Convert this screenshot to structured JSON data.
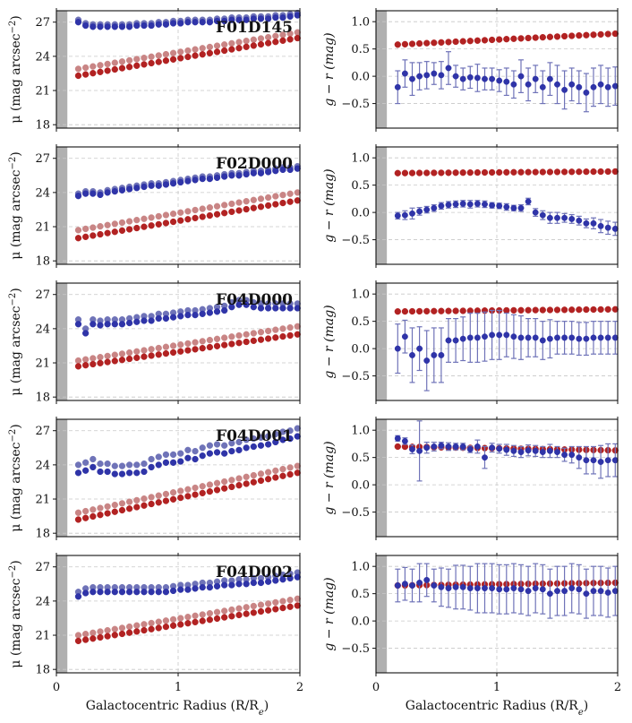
{
  "chart_data": {
    "type": "scatter",
    "colors": {
      "red_inner": "#b22222",
      "red_outer": "#c98585",
      "blue_inner": "#2f34a8",
      "blue_outer": "#6f73b8",
      "shade": "#b0b0b0",
      "grid": "#c8c8c8"
    },
    "xlabel": "Galactocentric Radius (R/R",
    "xlabel_sub": "e",
    "xlabel_end": ")",
    "x_ticks": [
      "0",
      "1",
      "2"
    ],
    "xlim": [
      0,
      2
    ],
    "left_ylabel": "μ (mag arcsec",
    "left_ylabel_sup": "−2",
    "left_ylabel_end": ")",
    "right_ylabel": "g − r (mag)",
    "left_ylim": [
      28,
      17.7
    ],
    "right_ylim": [
      -0.95,
      1.2
    ],
    "left_yticks": [
      "18",
      "21",
      "24",
      "27"
    ],
    "right_yticks": [
      "1.0",
      "0.5",
      "0.0",
      "−0.5"
    ],
    "shade_x": 0.09,
    "radii": [
      0.18,
      0.24,
      0.3,
      0.36,
      0.42,
      0.48,
      0.54,
      0.6,
      0.66,
      0.72,
      0.78,
      0.84,
      0.9,
      0.96,
      1.02,
      1.08,
      1.14,
      1.2,
      1.26,
      1.32,
      1.38,
      1.44,
      1.5,
      1.56,
      1.62,
      1.68,
      1.74,
      1.8,
      1.86,
      1.92,
      1.98
    ],
    "panels": [
      {
        "name": "F01D145",
        "red_start": 22.3,
        "red_end": 25.6,
        "red2_start": 22.9,
        "red2_end": 26.1,
        "blue": [
          27.0,
          26.7,
          26.6,
          26.6,
          26.6,
          26.6,
          26.6,
          26.6,
          26.7,
          26.7,
          26.7,
          26.8,
          26.8,
          26.9,
          26.9,
          27.0,
          27.0,
          27.0,
          27.0,
          27.1,
          27.1,
          27.2,
          27.2,
          27.2,
          27.3,
          27.3,
          27.3,
          27.4,
          27.4,
          27.5,
          27.6
        ],
        "blue2_offset": 0.2,
        "color_red_start": 0.58,
        "color_red_end": 0.78,
        "color_blue": [
          -0.2,
          0.05,
          -0.05,
          0.0,
          0.02,
          0.05,
          0.02,
          0.15,
          0.0,
          -0.05,
          -0.02,
          -0.03,
          -0.05,
          -0.05,
          -0.08,
          -0.1,
          -0.15,
          0.0,
          -0.15,
          -0.05,
          -0.2,
          -0.05,
          -0.15,
          -0.25,
          -0.15,
          -0.2,
          -0.3,
          -0.2,
          -0.15,
          -0.2,
          -0.18
        ],
        "color_err": [
          0.3,
          0.25,
          0.3,
          0.25,
          0.25,
          0.2,
          0.25,
          0.3,
          0.2,
          0.2,
          0.2,
          0.25,
          0.2,
          0.2,
          0.2,
          0.25,
          0.25,
          0.3,
          0.3,
          0.25,
          0.3,
          0.3,
          0.35,
          0.35,
          0.3,
          0.3,
          0.35,
          0.35,
          0.35,
          0.35,
          0.35
        ]
      },
      {
        "name": "F02D000",
        "red_start": 20.0,
        "red_end": 23.3,
        "red2_start": 20.7,
        "red2_end": 24.0,
        "blue": [
          23.7,
          23.9,
          23.9,
          23.8,
          24.0,
          24.1,
          24.2,
          24.3,
          24.4,
          24.5,
          24.6,
          24.6,
          24.7,
          24.8,
          24.9,
          25.0,
          25.1,
          25.2,
          25.2,
          25.3,
          25.4,
          25.5,
          25.5,
          25.6,
          25.7,
          25.7,
          25.8,
          25.9,
          26.0,
          26.0,
          26.1
        ],
        "blue2_offset": 0.2,
        "color_red_start": 0.72,
        "color_red_end": 0.75,
        "color_blue": [
          -0.06,
          -0.05,
          -0.02,
          0.02,
          0.05,
          0.08,
          0.12,
          0.14,
          0.15,
          0.16,
          0.15,
          0.16,
          0.15,
          0.13,
          0.12,
          0.1,
          0.08,
          0.08,
          0.2,
          0.0,
          -0.05,
          -0.1,
          -0.1,
          -0.1,
          -0.12,
          -0.15,
          -0.2,
          -0.2,
          -0.25,
          -0.28,
          -0.3
        ],
        "color_err": [
          0.06,
          0.08,
          0.1,
          0.07,
          0.06,
          0.06,
          0.06,
          0.06,
          0.06,
          0.06,
          0.07,
          0.06,
          0.06,
          0.05,
          0.05,
          0.06,
          0.05,
          0.06,
          0.06,
          0.07,
          0.08,
          0.1,
          0.1,
          0.08,
          0.08,
          0.08,
          0.08,
          0.1,
          0.12,
          0.12,
          0.12
        ]
      },
      {
        "name": "F04D000",
        "red_start": 20.7,
        "red_end": 23.5,
        "red2_start": 21.2,
        "red2_end": 24.2,
        "blue": [
          24.4,
          23.6,
          24.4,
          24.3,
          24.4,
          24.4,
          24.4,
          24.5,
          24.6,
          24.7,
          24.7,
          24.9,
          24.9,
          25.0,
          25.1,
          25.2,
          25.2,
          25.3,
          25.4,
          25.5,
          25.6,
          25.9,
          26.1,
          26.1,
          25.9,
          25.8,
          25.8,
          25.8,
          25.8,
          25.8,
          25.8
        ],
        "blue2_offset": 0.4,
        "color_red_start": 0.68,
        "color_red_end": 0.72,
        "color_blue": [
          0.0,
          0.22,
          -0.12,
          0.0,
          -0.22,
          -0.12,
          -0.12,
          0.15,
          0.15,
          0.18,
          0.2,
          0.2,
          0.22,
          0.25,
          0.25,
          0.25,
          0.22,
          0.2,
          0.2,
          0.2,
          0.15,
          0.18,
          0.2,
          0.2,
          0.2,
          0.18,
          0.18,
          0.2,
          0.2,
          0.2,
          0.2
        ],
        "color_err": [
          0.45,
          0.3,
          0.5,
          0.4,
          0.55,
          0.5,
          0.5,
          0.4,
          0.4,
          0.4,
          0.45,
          0.45,
          0.45,
          0.45,
          0.45,
          0.4,
          0.4,
          0.4,
          0.35,
          0.35,
          0.35,
          0.35,
          0.3,
          0.3,
          0.3,
          0.3,
          0.3,
          0.3,
          0.3,
          0.3,
          0.3
        ]
      },
      {
        "name": "F04D001",
        "red_start": 19.2,
        "red_end": 23.3,
        "red2_start": 19.8,
        "red2_end": 23.9,
        "blue": [
          23.3,
          23.5,
          23.8,
          23.4,
          23.4,
          23.2,
          23.2,
          23.3,
          23.3,
          23.4,
          23.8,
          24.0,
          24.2,
          24.2,
          24.3,
          24.6,
          24.5,
          24.8,
          25.0,
          25.1,
          25.0,
          25.2,
          25.3,
          25.5,
          25.6,
          25.7,
          25.8,
          26.0,
          26.2,
          26.3,
          26.5
        ],
        "blue2_offset": 0.7,
        "color_red_start": 0.7,
        "color_red_end": 0.63,
        "color_blue": [
          0.85,
          0.8,
          0.65,
          0.62,
          0.68,
          0.7,
          0.72,
          0.7,
          0.7,
          0.7,
          0.65,
          0.7,
          0.5,
          0.68,
          0.66,
          0.64,
          0.62,
          0.6,
          0.63,
          0.62,
          0.6,
          0.62,
          0.6,
          0.55,
          0.55,
          0.5,
          0.45,
          0.45,
          0.42,
          0.45,
          0.45
        ],
        "color_err": [
          0.05,
          0.06,
          0.08,
          0.55,
          0.1,
          0.08,
          0.06,
          0.07,
          0.06,
          0.06,
          0.06,
          0.12,
          0.2,
          0.08,
          0.08,
          0.1,
          0.1,
          0.1,
          0.1,
          0.1,
          0.1,
          0.12,
          0.1,
          0.12,
          0.15,
          0.2,
          0.25,
          0.25,
          0.3,
          0.3,
          0.3
        ]
      },
      {
        "name": "F04D002",
        "red_start": 20.5,
        "red_end": 23.6,
        "red2_start": 21.0,
        "red2_end": 24.2,
        "blue": [
          24.4,
          24.7,
          24.8,
          24.8,
          24.8,
          24.8,
          24.8,
          24.8,
          24.8,
          24.8,
          24.8,
          24.8,
          24.8,
          24.9,
          25.0,
          25.0,
          25.1,
          25.2,
          25.2,
          25.3,
          25.4,
          25.4,
          25.5,
          25.5,
          25.6,
          25.6,
          25.7,
          25.8,
          25.9,
          26.0,
          26.1
        ],
        "blue2_offset": 0.4,
        "color_red_start": 0.65,
        "color_red_end": 0.7,
        "color_blue": [
          0.65,
          0.68,
          0.65,
          0.7,
          0.75,
          0.65,
          0.62,
          0.6,
          0.62,
          0.62,
          0.6,
          0.6,
          0.6,
          0.6,
          0.58,
          0.58,
          0.6,
          0.58,
          0.55,
          0.6,
          0.58,
          0.5,
          0.55,
          0.55,
          0.6,
          0.58,
          0.5,
          0.55,
          0.55,
          0.52,
          0.55
        ],
        "color_err": [
          0.3,
          0.3,
          0.3,
          0.35,
          0.3,
          0.3,
          0.35,
          0.35,
          0.4,
          0.4,
          0.4,
          0.45,
          0.45,
          0.45,
          0.45,
          0.45,
          0.45,
          0.45,
          0.45,
          0.45,
          0.45,
          0.45,
          0.45,
          0.45,
          0.45,
          0.45,
          0.45,
          0.45,
          0.45,
          0.45,
          0.45
        ]
      }
    ]
  }
}
